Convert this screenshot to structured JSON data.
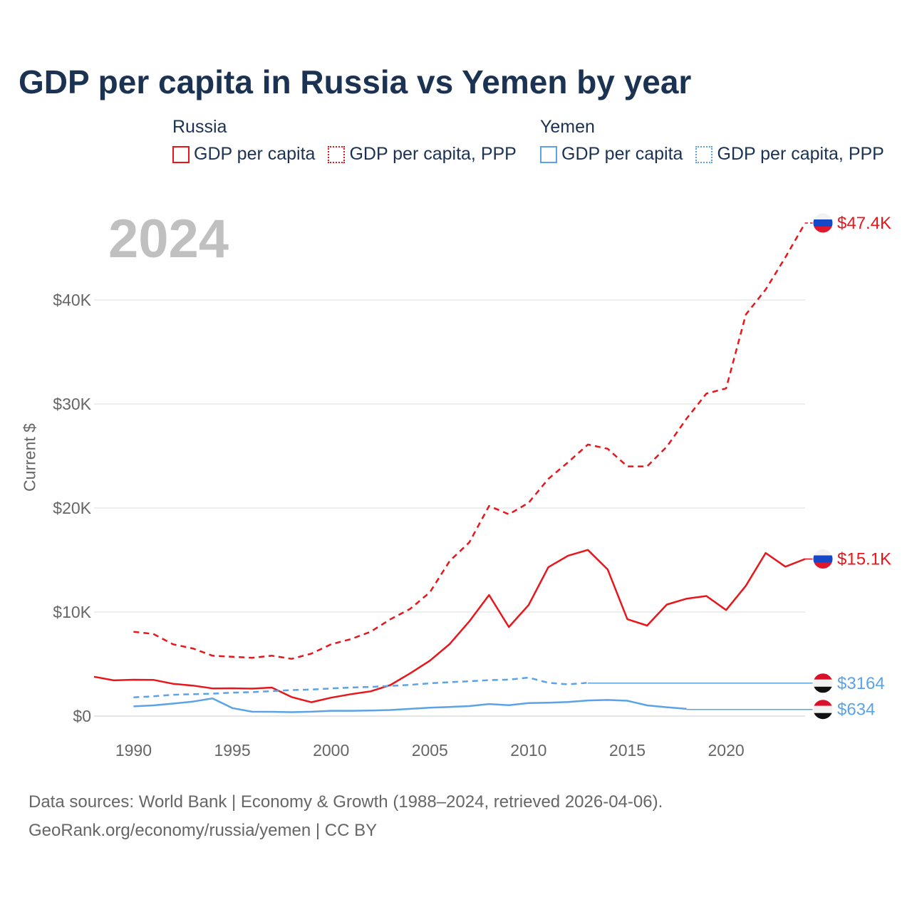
{
  "chart_data": {
    "type": "line",
    "title": "GDP per capita in Russia vs Yemen by year",
    "year_label": "2024",
    "ylabel": "Current $",
    "xlabel": "",
    "xlim": [
      1988,
      2024
    ],
    "ylim": [
      0,
      50000
    ],
    "x_ticks": [
      "1990",
      "1995",
      "2000",
      "2005",
      "2010",
      "2015",
      "2020"
    ],
    "y_ticks": [
      {
        "value": 0,
        "label": "$0"
      },
      {
        "value": 10000,
        "label": "$10K"
      },
      {
        "value": 20000,
        "label": "$20K"
      },
      {
        "value": 30000,
        "label": "$30K"
      },
      {
        "value": 40000,
        "label": "$40K"
      }
    ],
    "legend": [
      {
        "group": "Russia",
        "items": [
          {
            "label": "GDP per capita",
            "color": "#e8161b",
            "style": "solid"
          },
          {
            "label": "GDP per capita, PPP",
            "color": "#e8161b",
            "style": "dotted"
          }
        ]
      },
      {
        "group": "Yemen",
        "items": [
          {
            "label": "GDP per capita",
            "color": "#5ba3e6",
            "style": "solid"
          },
          {
            "label": "GDP per capita, PPP",
            "color": "#5ba3e6",
            "style": "dotted"
          }
        ]
      }
    ],
    "series": [
      {
        "name": "Russia GDP per capita",
        "country": "Russia",
        "color": "#e8161b",
        "dash": false,
        "x": [
          1988,
          1989,
          1990,
          1991,
          1992,
          1993,
          1994,
          1995,
          1996,
          1997,
          1998,
          1999,
          2000,
          2001,
          2002,
          2003,
          2004,
          2005,
          2006,
          2007,
          2008,
          2009,
          2010,
          2011,
          2012,
          2013,
          2014,
          2015,
          2016,
          2017,
          2018,
          2019,
          2020,
          2021,
          2022,
          2023,
          2024
        ],
        "values": [
          3780,
          3430,
          3490,
          3480,
          3100,
          2930,
          2660,
          2670,
          2640,
          2740,
          1830,
          1330,
          1770,
          2100,
          2380,
          2980,
          4100,
          5320,
          6920,
          9100,
          11640,
          8560,
          10670,
          14310,
          15420,
          15970,
          14100,
          9310,
          8700,
          10720,
          11290,
          11540,
          10190,
          12520,
          15680,
          14360,
          15100
        ],
        "end_label": "$15.1K"
      },
      {
        "name": "Russia GDP per capita, PPP",
        "country": "Russia",
        "color": "#e8161b",
        "dash": true,
        "x": [
          1990,
          1991,
          1992,
          1993,
          1994,
          1995,
          1996,
          1997,
          1998,
          1999,
          2000,
          2001,
          2002,
          2003,
          2004,
          2005,
          2006,
          2007,
          2008,
          2009,
          2010,
          2011,
          2012,
          2013,
          2014,
          2015,
          2016,
          2017,
          2018,
          2019,
          2020,
          2021,
          2022,
          2023,
          2024
        ],
        "values": [
          8100,
          7900,
          6900,
          6500,
          5800,
          5700,
          5600,
          5800,
          5500,
          6000,
          6900,
          7400,
          8100,
          9300,
          10300,
          11900,
          14900,
          16700,
          20200,
          19400,
          20500,
          22800,
          24400,
          26100,
          25700,
          24000,
          24000,
          25900,
          28600,
          31000,
          31500,
          38600,
          41000,
          44100,
          47400
        ],
        "end_label": "$47.4K"
      },
      {
        "name": "Yemen GDP per capita",
        "country": "Yemen",
        "color": "#5ba3e6",
        "dash": false,
        "x": [
          1990,
          1991,
          1992,
          1993,
          1994,
          1995,
          1996,
          1997,
          1998,
          1999,
          2000,
          2001,
          2002,
          2003,
          2004,
          2005,
          2006,
          2007,
          2008,
          2009,
          2010,
          2011,
          2012,
          2013,
          2014,
          2015,
          2016,
          2017,
          2018
        ],
        "values": [
          930,
          1030,
          1200,
          1390,
          1700,
          770,
          420,
          410,
          380,
          420,
          510,
          510,
          530,
          580,
          690,
          810,
          880,
          960,
          1160,
          1040,
          1250,
          1290,
          1350,
          1500,
          1550,
          1470,
          1030,
          850,
          690
        ],
        "carry_forward_to": 2024,
        "end_value": 634,
        "end_label": "$634"
      },
      {
        "name": "Yemen GDP per capita, PPP",
        "country": "Yemen",
        "color": "#5ba3e6",
        "dash": true,
        "x": [
          1990,
          1991,
          1992,
          1993,
          1994,
          1995,
          1996,
          1997,
          1998,
          1999,
          2000,
          2001,
          2002,
          2003,
          2004,
          2005,
          2006,
          2007,
          2008,
          2009,
          2010,
          2011,
          2012,
          2013
        ],
        "values": [
          1800,
          1900,
          2050,
          2100,
          2150,
          2250,
          2300,
          2400,
          2500,
          2550,
          2650,
          2750,
          2800,
          2900,
          3000,
          3150,
          3250,
          3350,
          3450,
          3500,
          3700,
          3200,
          3050,
          3200
        ],
        "carry_forward_to": 2024,
        "end_value": 3164,
        "end_label": "$3164"
      }
    ],
    "footer": [
      "Data sources: World Bank | Economy & Growth (1988–2024, retrieved 2026-04-06).",
      "GeoRank.org/economy/russia/yemen | CC BY"
    ]
  }
}
